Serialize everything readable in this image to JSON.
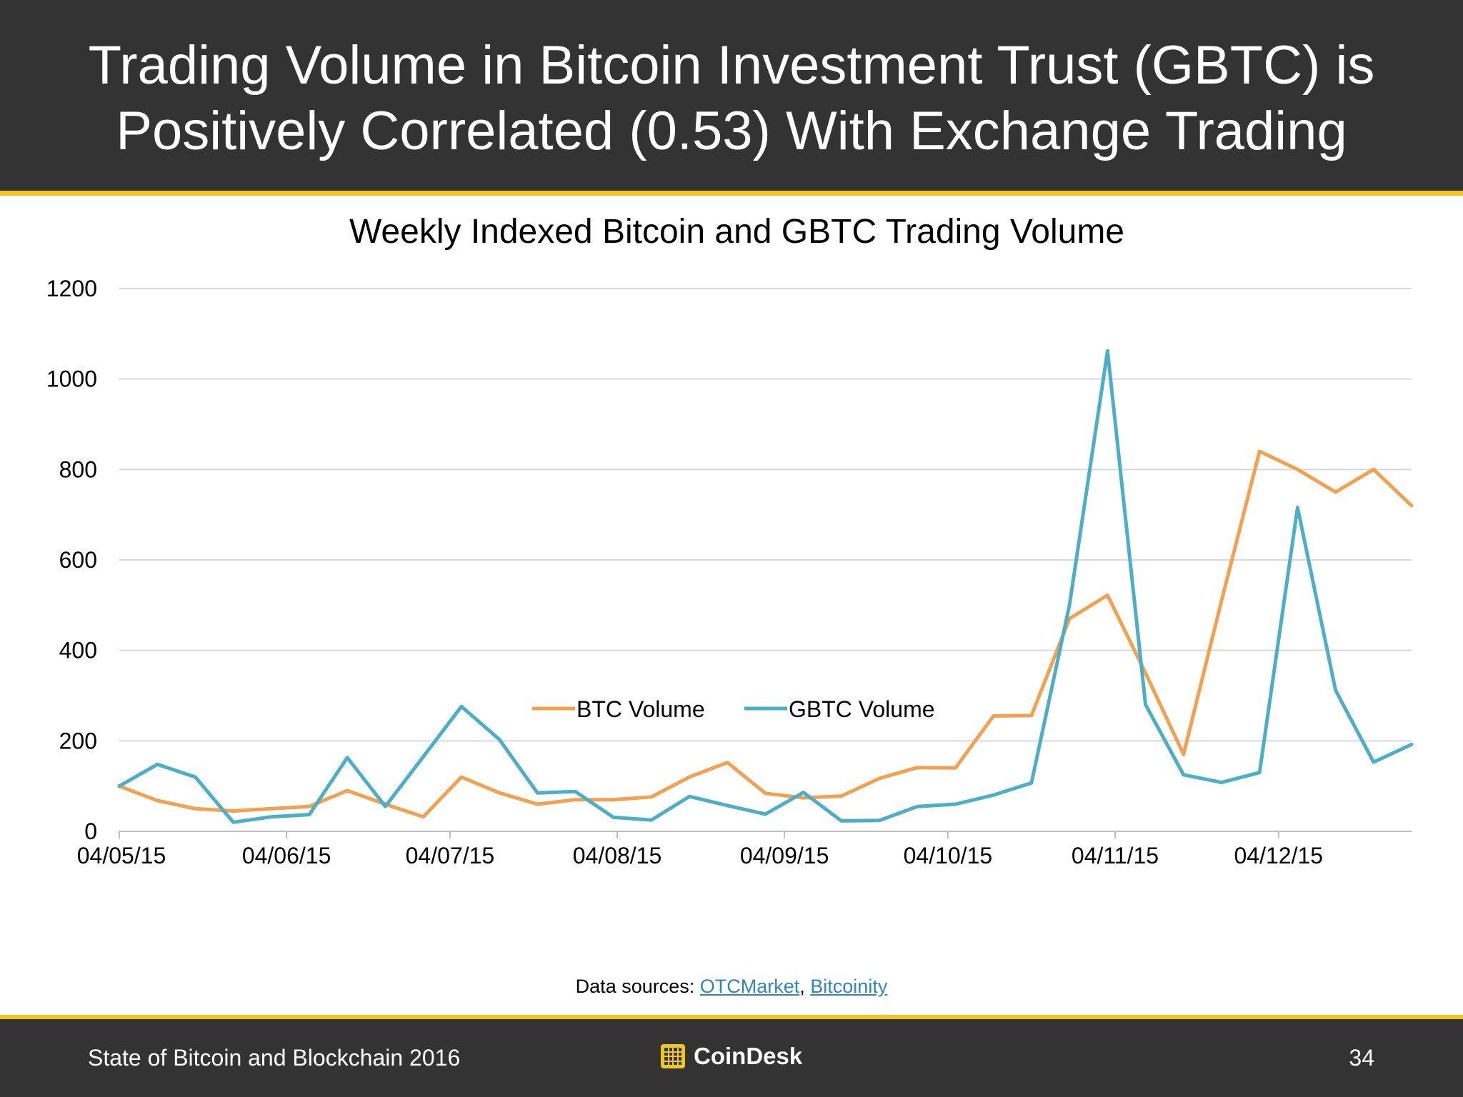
{
  "slide": {
    "title_line1": "Trading Volume in Bitcoin Investment Trust (GBTC) is",
    "title_line2": "Positively Correlated (0.53) With Exchange Trading",
    "sources_prefix": "Data sources: ",
    "source_links": [
      "OTCMarket",
      "Bitcoinity"
    ],
    "source_separator": ", ",
    "footer_left": "State of Bitcoin and Blockchain 2016",
    "brand": "CoinDesk",
    "page_number": "34"
  },
  "colors": {
    "btc": "#f4a14f",
    "gbtc": "#4bafc8",
    "header_bg": "#333333",
    "accent": "#f2c71b",
    "link": "#2e86c1"
  },
  "chart_data": {
    "type": "line",
    "title": "Weekly Indexed Bitcoin and GBTC Trading Volume",
    "xlabel": "",
    "ylabel": "",
    "ylim": [
      0,
      1200
    ],
    "yticks": [
      0,
      200,
      400,
      600,
      800,
      1000,
      1200
    ],
    "x_tick_labels": [
      "04/05/15",
      "04/06/15",
      "04/07/15",
      "04/08/15",
      "04/09/15",
      "04/10/15",
      "04/11/15",
      "04/12/15"
    ],
    "x_tick_index": [
      0,
      4.4,
      8.7,
      13.1,
      17.5,
      21.8,
      26.2,
      30.5
    ],
    "grid": true,
    "legend_position": "bottom",
    "series": [
      {
        "name": "BTC Volume",
        "color": "#f4a14f",
        "values": [
          100,
          68,
          50,
          45,
          50,
          55,
          90,
          60,
          32,
          120,
          85,
          60,
          70,
          70,
          76,
          120,
          152,
          84,
          74,
          78,
          117,
          141,
          140,
          255,
          256,
          470,
          522,
          350,
          170,
          510,
          840,
          800,
          750,
          800,
          720
        ]
      },
      {
        "name": "GBTC Volume",
        "color": "#4bafc8",
        "values": [
          100,
          148,
          120,
          20,
          32,
          37,
          163,
          55,
          165,
          276,
          203,
          85,
          88,
          31,
          25,
          77,
          57,
          38,
          86,
          23,
          24,
          55,
          60,
          80,
          107,
          500,
          1062,
          280,
          125,
          108,
          130,
          716,
          312,
          153,
          192
        ]
      }
    ]
  }
}
